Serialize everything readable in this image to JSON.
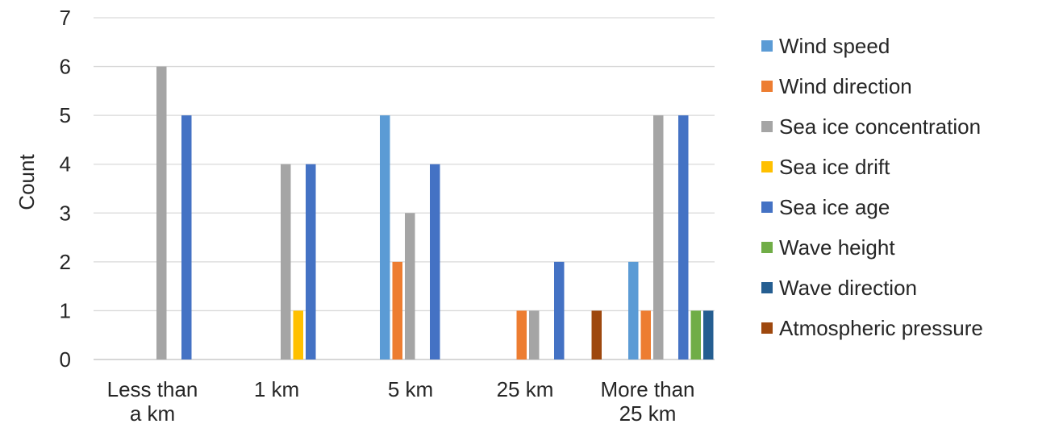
{
  "chart_data": {
    "type": "bar",
    "ylabel": "Count",
    "ylim": [
      0,
      7
    ],
    "yticks": [
      0,
      1,
      2,
      3,
      4,
      5,
      6,
      7
    ],
    "grid": true,
    "legend_position": "right",
    "categories": [
      [
        "Less than",
        "a km"
      ],
      [
        "1 km"
      ],
      [
        "5 km"
      ],
      [
        "25 km"
      ],
      [
        "More than",
        "25 km"
      ]
    ],
    "series": [
      {
        "name": "Wind speed",
        "color": "#5B9BD5",
        "values": [
          0,
          0,
          5,
          0,
          2
        ]
      },
      {
        "name": "Wind direction",
        "color": "#ED7D31",
        "values": [
          0,
          0,
          2,
          1,
          1
        ]
      },
      {
        "name": "Sea ice concentration",
        "color": "#A5A5A5",
        "values": [
          6,
          4,
          3,
          1,
          5
        ]
      },
      {
        "name": "Sea ice drift",
        "color": "#FFC000",
        "values": [
          0,
          1,
          0,
          0,
          0
        ]
      },
      {
        "name": "Sea ice age",
        "color": "#4472C4",
        "values": [
          5,
          4,
          4,
          2,
          5
        ]
      },
      {
        "name": "Wave height",
        "color": "#70AD47",
        "values": [
          0,
          0,
          0,
          0,
          1
        ]
      },
      {
        "name": "Wave direction",
        "color": "#255E91",
        "values": [
          0,
          0,
          0,
          0,
          1
        ]
      },
      {
        "name": "Atmospheric pressure",
        "color": "#9E480E",
        "values": [
          0,
          0,
          0,
          1,
          0
        ]
      }
    ]
  }
}
